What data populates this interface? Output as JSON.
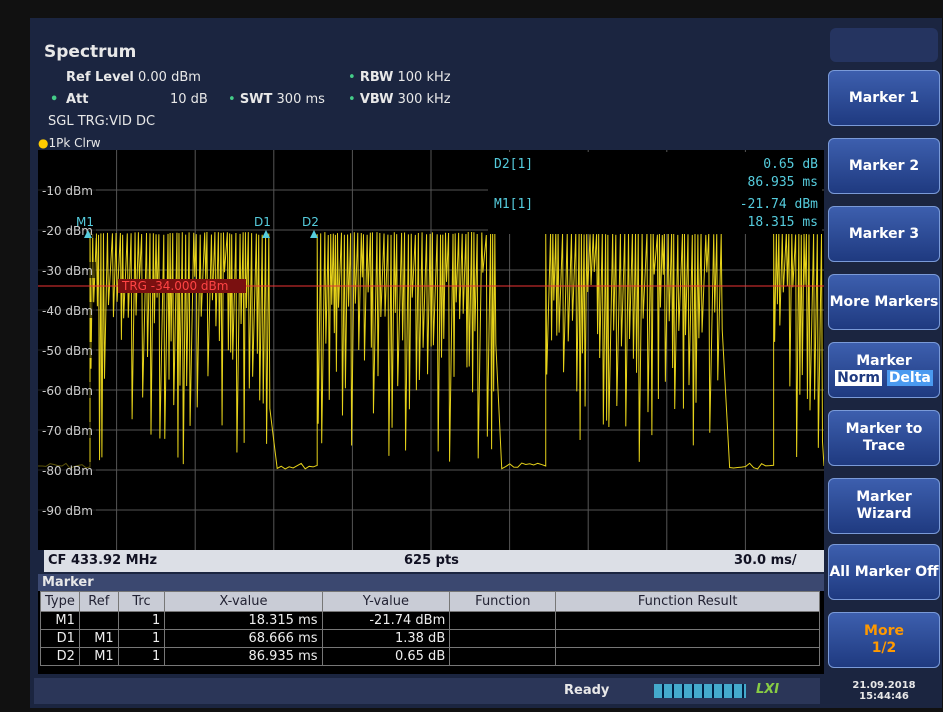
{
  "header": {
    "title": "Spectrum",
    "settings": [
      {
        "label": "Ref Level",
        "value": "0.00 dBm"
      },
      {
        "label": "Att",
        "value": "10 dB"
      },
      {
        "label": "SWT",
        "value": "300 ms"
      },
      {
        "label": "RBW",
        "value": "100 kHz"
      },
      {
        "label": "VBW",
        "value": "300 kHz"
      }
    ],
    "trigger": "SGL TRG:VID DC",
    "trace": "1Pk Clrw"
  },
  "plot": {
    "y_labels": [
      "-10 dBm",
      "-20 dBm",
      "-30 dBm",
      "-40 dBm",
      "-50 dBm",
      "-60 dBm",
      "-70 dBm",
      "-80 dBm",
      "-90 dBm"
    ],
    "markers": [
      "M1",
      "D1",
      "D2"
    ],
    "readout": [
      {
        "label": "D2[1]",
        "level": "0.65 dB",
        "time": "86.935 ms"
      },
      {
        "label": "M1[1]",
        "level": "-21.74 dBm",
        "time": "18.315 ms"
      }
    ],
    "trigger_line": "TRG -34.000 dBm"
  },
  "footer": {
    "cf": "CF 433.92 MHz",
    "points": "625 pts",
    "span": "30.0 ms/"
  },
  "marker_table": {
    "title": "Marker",
    "columns": [
      "Type",
      "Ref",
      "Trc",
      "X-value",
      "Y-value",
      "Function",
      "Function Result"
    ],
    "rows": [
      {
        "type": "M1",
        "trc": "1",
        "x": "18.315 ms",
        "y": "-21.74 dBm"
      },
      {
        "type": "D1",
        "ref": "M1",
        "trc": "1",
        "x": "68.666 ms",
        "y": "1.38 dB"
      },
      {
        "type": "D2",
        "ref": "M1",
        "trc": "1",
        "x": "86.935 ms",
        "y": "0.65 dB"
      }
    ]
  },
  "softkeys": {
    "marker_1": "Marker 1",
    "marker_2": "Marker 2",
    "marker_3": "Marker 3",
    "more_markers": "More Markers",
    "marker_mode": "Marker",
    "norm": "Norm",
    "delta": "Delta",
    "marker_to_trace": "Marker to Trace",
    "marker_wizard": "Marker Wizard",
    "all_marker_off": "All Marker Off",
    "more": "More",
    "page": "1/2"
  },
  "status": {
    "state": "Ready",
    "logo": "LXI",
    "date": "21.09.2018",
    "time": "15:44:46"
  }
}
